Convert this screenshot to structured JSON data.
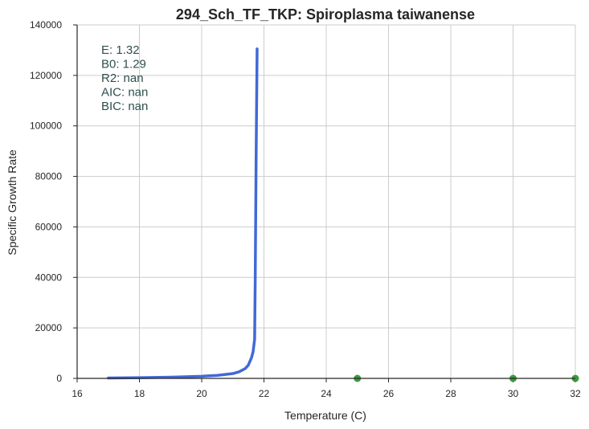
{
  "chart_data": {
    "type": "line",
    "title": "294_Sch_TF_TKP: Spiroplasma taiwanense",
    "xlabel": "Temperature (C)",
    "ylabel": "Specific Growth Rate",
    "xlim": [
      16,
      32
    ],
    "ylim": [
      0,
      140000
    ],
    "x_ticks": [
      "16",
      "18",
      "20",
      "22",
      "24",
      "26",
      "28",
      "30",
      "32"
    ],
    "y_ticks": [
      "0",
      "20000",
      "40000",
      "60000",
      "80000",
      "100000",
      "120000",
      "140000"
    ],
    "grid": true,
    "annotations": [
      {
        "label": "E:",
        "value": "1.32",
        "text": "E:  1.32"
      },
      {
        "label": "B0:",
        "value": "1.29",
        "text": "B0:  1.29"
      },
      {
        "label": "R2:",
        "value": "nan",
        "text": "R2:  nan"
      },
      {
        "label": "AIC:",
        "value": "nan",
        "text": "AIC: nan"
      },
      {
        "label": "BIC:",
        "value": "nan",
        "text": "BIC: nan"
      }
    ],
    "series": [
      {
        "kind": "line",
        "color": "#4169d6",
        "x": [
          17.0,
          18.0,
          19.0,
          20.0,
          20.5,
          21.0,
          21.2,
          21.4,
          21.5,
          21.6,
          21.65,
          21.7,
          21.72,
          21.75,
          21.78
        ],
        "y": [
          150,
          260,
          470,
          850,
          1200,
          1900,
          2600,
          3900,
          5300,
          8200,
          10500,
          15500,
          40000,
          90000,
          130500
        ]
      },
      {
        "kind": "scatter",
        "color": "#3a9a3a",
        "x": [
          25,
          30,
          32
        ],
        "y": [
          0,
          0,
          0
        ]
      }
    ]
  }
}
